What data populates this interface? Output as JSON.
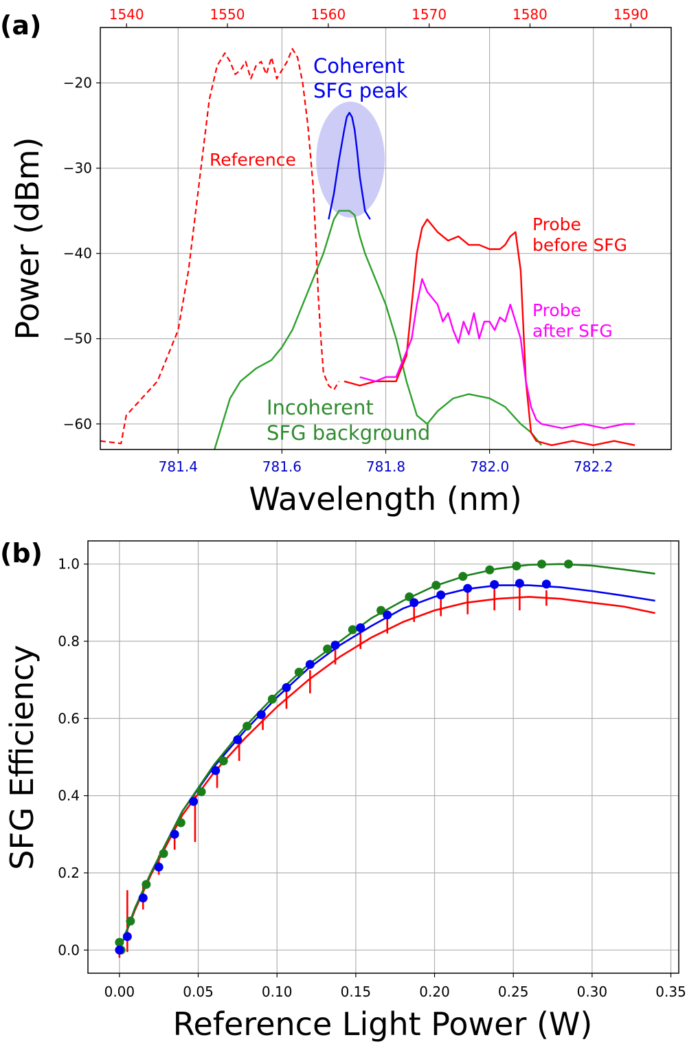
{
  "chart_data": [
    {
      "panel_label": "(a)",
      "type": "line",
      "xlabel": "Wavelength (nm)",
      "ylabel": "Power (dBm)",
      "xlim": [
        781.25,
        782.35
      ],
      "ylim": [
        -63,
        -13.5
      ],
      "xticks": [
        781.4,
        781.6,
        781.8,
        782.0,
        782.2
      ],
      "xtick_labels": [
        "781.4",
        "781.6",
        "781.8",
        "782.0",
        "782.2"
      ],
      "yticks": [
        -60,
        -50,
        -40,
        -30,
        -20
      ],
      "ytick_labels": [
        "−60",
        "−50",
        "−40",
        "−30",
        "−20"
      ],
      "top_axis": {
        "xlim": [
          1537.4,
          1594.0
        ],
        "ticks": [
          1540,
          1550,
          1560,
          1570,
          1580,
          1590
        ],
        "tick_labels": [
          "1540",
          "1550",
          "1560",
          "1570",
          "1580",
          "1590"
        ],
        "color": "#ff0000"
      },
      "bottom_tick_color": "#0000cc",
      "series": [
        {
          "name": "Reference",
          "color": "#ff0000",
          "style": "dashed",
          "x": [
            781.25,
            781.29,
            781.3,
            781.33,
            781.36,
            781.38,
            781.4,
            781.42,
            781.44,
            781.46,
            781.475,
            781.48,
            781.49,
            781.5,
            781.51,
            781.52,
            781.53,
            781.54,
            781.55,
            781.56,
            781.57,
            781.58,
            781.59,
            781.6,
            781.61,
            781.62,
            781.63,
            781.64,
            781.65,
            781.66,
            781.665,
            781.67,
            781.675,
            781.68,
            781.69,
            781.7,
            781.71
          ],
          "y": [
            -62,
            -62.3,
            -59,
            -57,
            -55,
            -52,
            -49,
            -42,
            -32,
            -22,
            -18,
            -17.5,
            -16.5,
            -17.5,
            -19,
            -18.5,
            -17.5,
            -19.5,
            -18,
            -17.5,
            -19,
            -17,
            -19.5,
            -18.5,
            -17.5,
            -16,
            -17,
            -20,
            -25,
            -32,
            -38,
            -45,
            -50,
            -54,
            -55.5,
            -56,
            -55
          ]
        },
        {
          "name": "Coherent SFG peak",
          "color": "#0000ee",
          "style": "solid",
          "x": [
            781.69,
            781.7,
            781.71,
            781.72,
            781.725,
            781.73,
            781.735,
            781.74,
            781.745,
            781.75,
            781.76,
            781.77
          ],
          "y": [
            -36,
            -33,
            -29,
            -25.5,
            -24,
            -23.5,
            -24,
            -25.5,
            -28,
            -31,
            -35,
            -36
          ]
        },
        {
          "name": "Incoherent SFG background",
          "color": "#2ca02c",
          "style": "solid",
          "x": [
            781.47,
            781.5,
            781.52,
            781.55,
            781.58,
            781.6,
            781.62,
            781.64,
            781.66,
            781.68,
            781.69,
            781.7,
            781.71,
            781.72,
            781.73,
            781.74,
            781.75,
            781.76,
            781.78,
            781.8,
            781.82,
            781.84,
            781.86,
            781.88,
            781.9,
            781.93,
            781.96,
            782.0,
            782.03,
            782.06,
            782.08,
            782.1
          ],
          "y": [
            -63,
            -57,
            -55,
            -53.5,
            -52.5,
            -51,
            -49,
            -46,
            -43,
            -40,
            -38,
            -36,
            -35,
            -35,
            -35,
            -35.5,
            -38,
            -40,
            -43,
            -46,
            -50,
            -55,
            -59,
            -60,
            -58.5,
            -57,
            -56.5,
            -57,
            -58,
            -60,
            -61,
            -62.5
          ]
        },
        {
          "name": "Probe before SFG",
          "color": "#ff0000",
          "style": "solid",
          "x": [
            781.72,
            781.75,
            781.78,
            781.8,
            781.82,
            781.84,
            781.85,
            781.86,
            781.87,
            781.88,
            781.9,
            781.92,
            781.94,
            781.96,
            781.98,
            782.0,
            782.02,
            782.03,
            782.04,
            782.05,
            782.06,
            782.07,
            782.08,
            782.09,
            782.12,
            782.16,
            782.2,
            782.24,
            782.28
          ],
          "y": [
            -55,
            -55.5,
            -55,
            -55,
            -55,
            -52,
            -46,
            -40,
            -37,
            -36,
            -37.5,
            -38.5,
            -38,
            -39,
            -39,
            -39.5,
            -39.5,
            -39,
            -38,
            -37.5,
            -42,
            -55,
            -61,
            -62,
            -62.5,
            -62,
            -62.5,
            -62,
            -62.5
          ]
        },
        {
          "name": "Probe after SFG",
          "color": "#ff00ff",
          "style": "solid",
          "x": [
            781.75,
            781.78,
            781.8,
            781.82,
            781.83,
            781.85,
            781.86,
            781.87,
            781.88,
            781.9,
            781.91,
            781.92,
            781.93,
            781.94,
            781.95,
            781.96,
            781.97,
            781.98,
            781.99,
            782.0,
            782.01,
            782.02,
            782.03,
            782.04,
            782.05,
            782.06,
            782.07,
            782.08,
            782.09,
            782.1,
            782.14,
            782.18,
            782.22,
            782.26,
            782.28
          ],
          "y": [
            -54.5,
            -55,
            -54.5,
            -54.5,
            -53,
            -50,
            -46,
            -43,
            -44.5,
            -46,
            -48,
            -47,
            -49,
            -50.5,
            -48,
            -49.5,
            -47,
            -50,
            -48,
            -48,
            -49,
            -47.5,
            -48,
            -46,
            -48,
            -50,
            -55,
            -58,
            -59.5,
            -60,
            -60.5,
            -60,
            -60.5,
            -60,
            -60
          ]
        }
      ],
      "annotations": [
        {
          "text": "Reference",
          "color": "#ff0000"
        },
        {
          "text": "Coherent",
          "color": "#0000ee"
        },
        {
          "text": "SFG peak",
          "color": "#0000ee"
        },
        {
          "text": "Probe",
          "color": "#ff0000"
        },
        {
          "text": "before SFG",
          "color": "#ff0000"
        },
        {
          "text": "Probe",
          "color": "#ff00ff"
        },
        {
          "text": "after SFG",
          "color": "#ff00ff"
        },
        {
          "text": "Incoherent",
          "color": "#2e8b2e"
        },
        {
          "text": "SFG background",
          "color": "#2e8b2e"
        }
      ],
      "highlight_ellipse": {
        "cx": 781.732,
        "cy": -29,
        "rx": 0.066,
        "ry": 6.8,
        "color": "#9999ee"
      }
    },
    {
      "panel_label": "(b)",
      "type": "scatter",
      "xlabel": "Reference Light Power (W)",
      "ylabel": "SFG Efficiency",
      "xlim": [
        -0.02,
        0.355
      ],
      "ylim": [
        -0.06,
        1.06
      ],
      "xticks": [
        0.0,
        0.05,
        0.1,
        0.15,
        0.2,
        0.25,
        0.3,
        0.35
      ],
      "xtick_labels": [
        "0.00",
        "0.05",
        "0.10",
        "0.15",
        "0.20",
        "0.25",
        "0.30",
        "0.35"
      ],
      "yticks": [
        0.0,
        0.2,
        0.4,
        0.6,
        0.8,
        1.0
      ],
      "ytick_labels": [
        "0.0",
        "0.2",
        "0.4",
        "0.6",
        "0.8",
        "1.0"
      ],
      "series": [
        {
          "name": "green",
          "color": "#1a7f1a",
          "points_x": [
            0.0,
            0.001,
            0.007,
            0.017,
            0.028,
            0.039,
            0.052,
            0.066,
            0.081,
            0.097,
            0.114,
            0.132,
            0.148,
            0.166,
            0.184,
            0.201,
            0.218,
            0.235,
            0.252,
            0.268,
            0.285
          ],
          "points_y": [
            0.02,
            0.0,
            0.075,
            0.17,
            0.25,
            0.33,
            0.41,
            0.49,
            0.58,
            0.65,
            0.72,
            0.78,
            0.83,
            0.88,
            0.915,
            0.945,
            0.968,
            0.985,
            0.995,
            1.0,
            1.0
          ],
          "curve_x": [
            0.0,
            0.01,
            0.02,
            0.04,
            0.06,
            0.08,
            0.1,
            0.12,
            0.14,
            0.16,
            0.18,
            0.2,
            0.22,
            0.24,
            0.26,
            0.28,
            0.3,
            0.32,
            0.34
          ],
          "curve_y": [
            0.0,
            0.11,
            0.2,
            0.36,
            0.48,
            0.58,
            0.665,
            0.74,
            0.8,
            0.86,
            0.905,
            0.943,
            0.97,
            0.988,
            0.998,
            1.0,
            0.996,
            0.986,
            0.975
          ]
        },
        {
          "name": "blue",
          "color": "#0000ee",
          "points_x": [
            0.0,
            0.005,
            0.015,
            0.025,
            0.035,
            0.047,
            0.061,
            0.075,
            0.09,
            0.106,
            0.121,
            0.137,
            0.153,
            0.17,
            0.187,
            0.204,
            0.221,
            0.238,
            0.254,
            0.271
          ],
          "points_y": [
            0.0,
            0.035,
            0.135,
            0.215,
            0.3,
            0.385,
            0.465,
            0.545,
            0.61,
            0.68,
            0.74,
            0.79,
            0.835,
            0.868,
            0.9,
            0.92,
            0.937,
            0.947,
            0.95,
            0.948
          ],
          "curve_x": [
            0.0,
            0.01,
            0.02,
            0.04,
            0.06,
            0.08,
            0.1,
            0.12,
            0.14,
            0.16,
            0.18,
            0.2,
            0.22,
            0.24,
            0.26,
            0.28,
            0.3,
            0.32,
            0.34
          ],
          "curve_y": [
            0.0,
            0.11,
            0.2,
            0.36,
            0.475,
            0.57,
            0.655,
            0.73,
            0.79,
            0.84,
            0.885,
            0.915,
            0.935,
            0.945,
            0.945,
            0.94,
            0.93,
            0.918,
            0.905
          ]
        },
        {
          "name": "red",
          "color": "#ff0000",
          "errorbar_x": [
            0.0,
            0.005,
            0.015,
            0.025,
            0.035,
            0.048,
            0.062,
            0.076,
            0.091,
            0.106,
            0.121,
            0.137,
            0.153,
            0.17,
            0.187,
            0.204,
            0.221,
            0.238,
            0.254,
            0.271
          ],
          "errorbar_y": [
            0.0,
            0.075,
            0.135,
            0.22,
            0.29,
            0.34,
            0.445,
            0.52,
            0.595,
            0.655,
            0.695,
            0.765,
            0.8,
            0.84,
            0.875,
            0.89,
            0.9,
            0.91,
            0.91,
            0.912
          ],
          "errorbar_err": [
            0.02,
            0.08,
            0.03,
            0.025,
            0.03,
            0.06,
            0.025,
            0.03,
            0.025,
            0.03,
            0.03,
            0.025,
            0.02,
            0.02,
            0.025,
            0.025,
            0.03,
            0.03,
            0.03,
            0.02
          ],
          "curve_x": [
            0.0,
            0.01,
            0.02,
            0.04,
            0.06,
            0.08,
            0.1,
            0.12,
            0.14,
            0.16,
            0.18,
            0.2,
            0.22,
            0.24,
            0.26,
            0.28,
            0.3,
            0.32,
            0.34
          ],
          "curve_y": [
            0.0,
            0.105,
            0.195,
            0.35,
            0.46,
            0.55,
            0.63,
            0.7,
            0.76,
            0.81,
            0.85,
            0.88,
            0.9,
            0.91,
            0.915,
            0.91,
            0.9,
            0.89,
            0.873
          ]
        }
      ]
    }
  ]
}
